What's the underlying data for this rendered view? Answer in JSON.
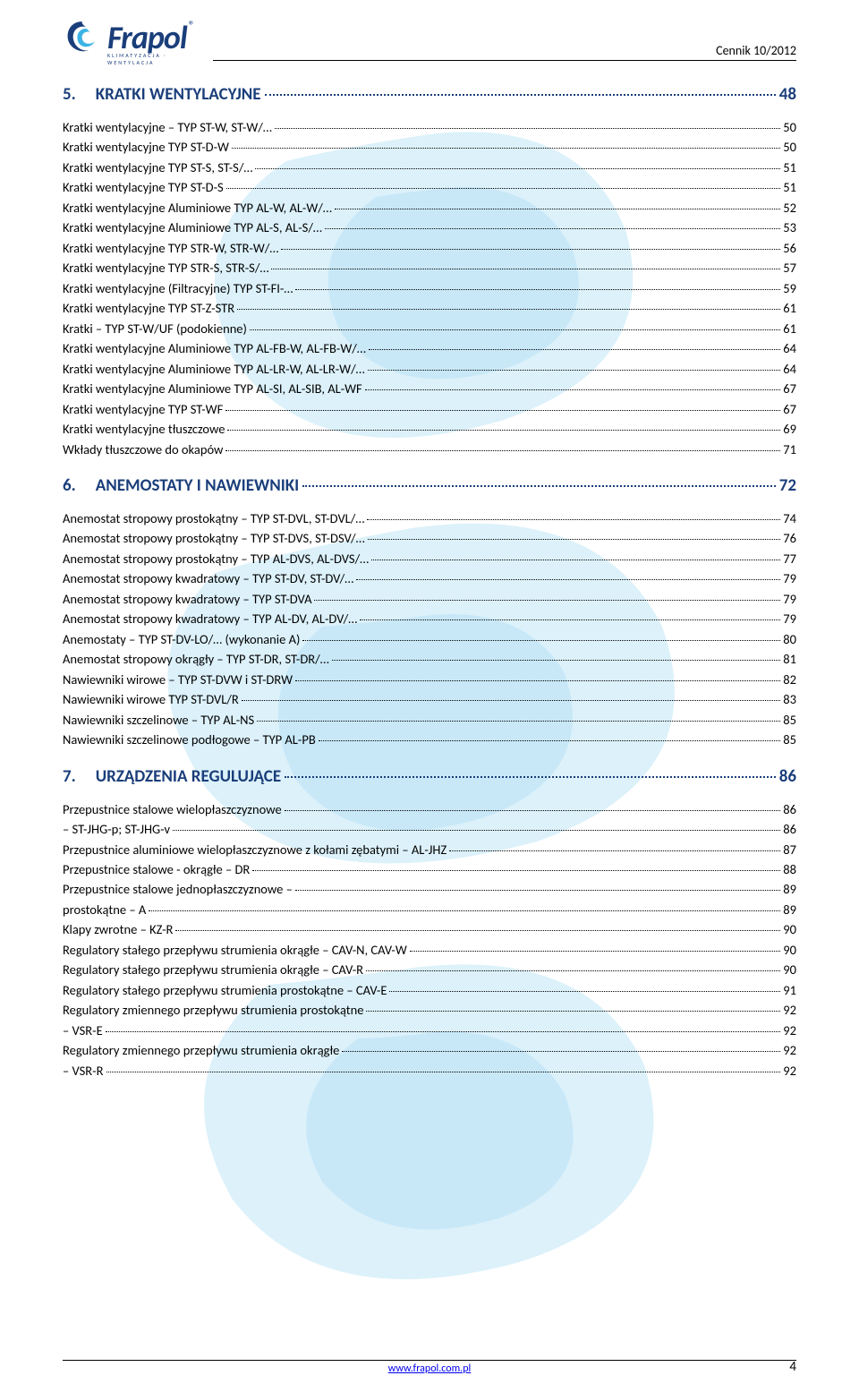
{
  "header": {
    "logo_text": "Frapol",
    "logo_sub": "KLIMATYZACJA · WENTYLACJA",
    "right": "Cennik 10/2012"
  },
  "logo_colors": {
    "blue": "#1a3e7a",
    "cyan": "#3bb3e6"
  },
  "watermark_color": "#bfe7f9",
  "sections": [
    {
      "num": "5.",
      "name": "KRATKI WENTYLACYJNE",
      "page": "48",
      "items": [
        {
          "text": "Kratki wentylacyjne – TYP ST-W, ST-W/…",
          "page": "50"
        },
        {
          "text": "Kratki wentylacyjne TYP ST-D-W",
          "page": "50"
        },
        {
          "text": "Kratki wentylacyjne TYP ST-S, ST-S/…",
          "page": "51"
        },
        {
          "text": "Kratki wentylacyjne TYP ST-D-S",
          "page": "51"
        },
        {
          "text": "Kratki wentylacyjne Aluminiowe TYP AL-W, AL-W/…",
          "page": "52"
        },
        {
          "text": "Kratki wentylacyjne Aluminiowe TYP AL-S, AL-S/…",
          "page": "53"
        },
        {
          "text": "Kratki wentylacyjne TYP STR-W, STR-W/…",
          "page": "56"
        },
        {
          "text": "Kratki wentylacyjne TYP STR-S, STR-S/…",
          "page": "57"
        },
        {
          "text": "Kratki wentylacyjne (Filtracyjne) TYP ST-FI-…",
          "page": "59"
        },
        {
          "text": "Kratki wentylacyjne TYP ST-Z-STR",
          "page": "61"
        },
        {
          "text": "Kratki – TYP ST-W/UF (podokienne)",
          "page": "61"
        },
        {
          "text": "Kratki wentylacyjne Aluminiowe TYP AL-FB-W, AL-FB-W/…",
          "page": "64"
        },
        {
          "text": "Kratki wentylacyjne Aluminiowe TYP AL-LR-W, AL-LR-W/…",
          "page": "64"
        },
        {
          "text": "Kratki wentylacyjne Aluminiowe TYP AL-SI, AL-SIB, AL-WF",
          "page": "67"
        },
        {
          "text": "Kratki wentylacyjne TYP ST-WF",
          "page": "67"
        },
        {
          "text": "Kratki wentylacyjne tłuszczowe",
          "page": "69"
        },
        {
          "text": "Wkłady tłuszczowe do okapów",
          "page": "71"
        }
      ]
    },
    {
      "num": "6.",
      "name": "ANEMOSTATY I NAWIEWNIKI",
      "page": "72",
      "items": [
        {
          "text": "Anemostat stropowy prostokątny  – TYP ST-DVL, ST-DVL/…",
          "page": "74"
        },
        {
          "text": "Anemostat stropowy prostokątny  – TYP ST-DVS, ST-DSV/…",
          "page": "76"
        },
        {
          "text": "Anemostat stropowy prostokątny  – TYP AL-DVS, AL-DVS/…",
          "page": "77"
        },
        {
          "text": "Anemostat stropowy kwadratowy – TYP ST-DV, ST-DV/…",
          "page": "79"
        },
        {
          "text": "Anemostat stropowy kwadratowy – TYP ST-DVA",
          "page": "79"
        },
        {
          "text": "Anemostat stropowy kwadratowy – TYP AL-DV, AL-DV/…",
          "page": "79"
        },
        {
          "text": "Anemostaty – TYP ST-DV-LO/… (wykonanie A)",
          "page": "80"
        },
        {
          "text": "Anemostat stropowy okrągły – TYP ST-DR, ST-DR/…",
          "page": "81"
        },
        {
          "text": "Nawiewniki wirowe – TYP ST-DVW i ST-DRW",
          "page": "82"
        },
        {
          "text": "Nawiewniki wirowe TYP ST-DVL/R",
          "page": "83"
        },
        {
          "text": "Nawiewniki szczelinowe – TYP AL-NS",
          "page": "85"
        },
        {
          "text": "Nawiewniki szczelinowe podłogowe – TYP AL-PB",
          "page": "85"
        }
      ]
    },
    {
      "num": "7.",
      "name": "URZĄDZENIA REGULUJĄCE",
      "page": "86",
      "items": [
        {
          "text": "Przepustnice stalowe wielopłaszczyznowe",
          "page": "86"
        },
        {
          "text": "– ST-JHG-p; ST-JHG-v",
          "page": "86"
        },
        {
          "text": "Przepustnice aluminiowe wielopłaszczyznowe z kołami zębatymi – AL-JHZ",
          "page": "87"
        },
        {
          "text": "Przepustnice stalowe - okrągłe – DR",
          "page": "88"
        },
        {
          "text": "Przepustnice stalowe jednopłaszczyznowe –",
          "page": "89"
        },
        {
          "text": "prostokątne – A",
          "page": "89"
        },
        {
          "text": "Klapy zwrotne – KZ-R",
          "page": "90"
        },
        {
          "text": "Regulatory stałego przepływu strumienia okrągłe – CAV-N, CAV-W",
          "page": "90"
        },
        {
          "text": "Regulatory stałego przepływu strumienia okrągłe – CAV-R",
          "page": "90"
        },
        {
          "text": "Regulatory stałego przepływu strumienia prostokątne – CAV-E",
          "page": "91"
        },
        {
          "text": "Regulatory zmiennego przepływu strumienia prostokątne",
          "page": "92"
        },
        {
          "text": "– VSR-E",
          "page": "92"
        },
        {
          "text": "Regulatory zmiennego przepływu strumienia okrągłe",
          "page": "92"
        },
        {
          "text": "– VSR-R",
          "page": "92"
        }
      ]
    }
  ],
  "footer": {
    "url": "www.frapol.com.pl",
    "page_num": "4"
  }
}
